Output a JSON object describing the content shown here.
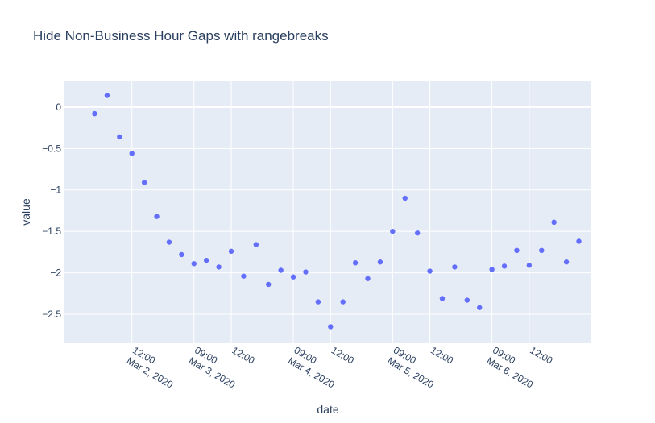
{
  "chart_data": {
    "type": "scatter",
    "title": "Hide Non-Business Hour Gaps with rangebreaks",
    "xlabel": "date",
    "ylabel": "value",
    "ylim": [
      -2.85,
      0.32
    ],
    "grid": true,
    "rangebreaks": "non-business hours hidden",
    "colors": {
      "plot_bg": "#e5ecf6",
      "grid": "#ffffff",
      "marker": "#636efa",
      "text": "#2a3f5f"
    },
    "y_ticks": [
      {
        "value": 0,
        "label": "0"
      },
      {
        "value": -0.5,
        "label": "−0.5"
      },
      {
        "value": -1,
        "label": "−1"
      },
      {
        "value": -1.5,
        "label": "−1.5"
      },
      {
        "value": -2,
        "label": "−2"
      },
      {
        "value": -2.5,
        "label": "−2.5"
      }
    ],
    "x_ticks": [
      {
        "x": "2020-03-02 12:00",
        "line1": "12:00",
        "line2": "Mar 2, 2020"
      },
      {
        "x": "2020-03-03 09:00",
        "line1": "09:00",
        "line2": "Mar 3, 2020"
      },
      {
        "x": "2020-03-03 12:00",
        "line1": "12:00",
        "line2": ""
      },
      {
        "x": "2020-03-04 09:00",
        "line1": "09:00",
        "line2": "Mar 4, 2020"
      },
      {
        "x": "2020-03-04 12:00",
        "line1": "12:00",
        "line2": ""
      },
      {
        "x": "2020-03-05 09:00",
        "line1": "09:00",
        "line2": "Mar 5, 2020"
      },
      {
        "x": "2020-03-05 12:00",
        "line1": "12:00",
        "line2": ""
      },
      {
        "x": "2020-03-06 09:00",
        "line1": "09:00",
        "line2": "Mar 6, 2020"
      },
      {
        "x": "2020-03-06 12:00",
        "line1": "12:00",
        "line2": ""
      }
    ],
    "points": [
      {
        "x": "2020-03-02 09:00",
        "y": -0.08
      },
      {
        "x": "2020-03-02 10:00",
        "y": 0.14
      },
      {
        "x": "2020-03-02 11:00",
        "y": -0.36
      },
      {
        "x": "2020-03-02 12:00",
        "y": -0.56
      },
      {
        "x": "2020-03-02 13:00",
        "y": -0.91
      },
      {
        "x": "2020-03-02 14:00",
        "y": -1.32
      },
      {
        "x": "2020-03-02 15:00",
        "y": -1.63
      },
      {
        "x": "2020-03-02 16:00",
        "y": -1.78
      },
      {
        "x": "2020-03-03 09:00",
        "y": -1.89
      },
      {
        "x": "2020-03-03 10:00",
        "y": -1.85
      },
      {
        "x": "2020-03-03 11:00",
        "y": -1.93
      },
      {
        "x": "2020-03-03 12:00",
        "y": -1.74
      },
      {
        "x": "2020-03-03 13:00",
        "y": -2.04
      },
      {
        "x": "2020-03-03 14:00",
        "y": -1.66
      },
      {
        "x": "2020-03-03 15:00",
        "y": -2.14
      },
      {
        "x": "2020-03-03 16:00",
        "y": -1.97
      },
      {
        "x": "2020-03-04 09:00",
        "y": -2.05
      },
      {
        "x": "2020-03-04 10:00",
        "y": -1.99
      },
      {
        "x": "2020-03-04 11:00",
        "y": -2.35
      },
      {
        "x": "2020-03-04 12:00",
        "y": -2.65
      },
      {
        "x": "2020-03-04 13:00",
        "y": -2.35
      },
      {
        "x": "2020-03-04 14:00",
        "y": -1.88
      },
      {
        "x": "2020-03-04 15:00",
        "y": -2.07
      },
      {
        "x": "2020-03-04 16:00",
        "y": -1.87
      },
      {
        "x": "2020-03-05 09:00",
        "y": -1.5
      },
      {
        "x": "2020-03-05 10:00",
        "y": -1.1
      },
      {
        "x": "2020-03-05 11:00",
        "y": -1.52
      },
      {
        "x": "2020-03-05 12:00",
        "y": -1.98
      },
      {
        "x": "2020-03-05 13:00",
        "y": -2.31
      },
      {
        "x": "2020-03-05 14:00",
        "y": -1.93
      },
      {
        "x": "2020-03-05 15:00",
        "y": -2.33
      },
      {
        "x": "2020-03-05 16:00",
        "y": -2.42
      },
      {
        "x": "2020-03-06 09:00",
        "y": -1.96
      },
      {
        "x": "2020-03-06 10:00",
        "y": -1.92
      },
      {
        "x": "2020-03-06 11:00",
        "y": -1.73
      },
      {
        "x": "2020-03-06 12:00",
        "y": -1.91
      },
      {
        "x": "2020-03-06 13:00",
        "y": -1.73
      },
      {
        "x": "2020-03-06 14:00",
        "y": -1.39
      },
      {
        "x": "2020-03-06 15:00",
        "y": -1.87
      },
      {
        "x": "2020-03-06 16:00",
        "y": -1.62
      }
    ]
  }
}
